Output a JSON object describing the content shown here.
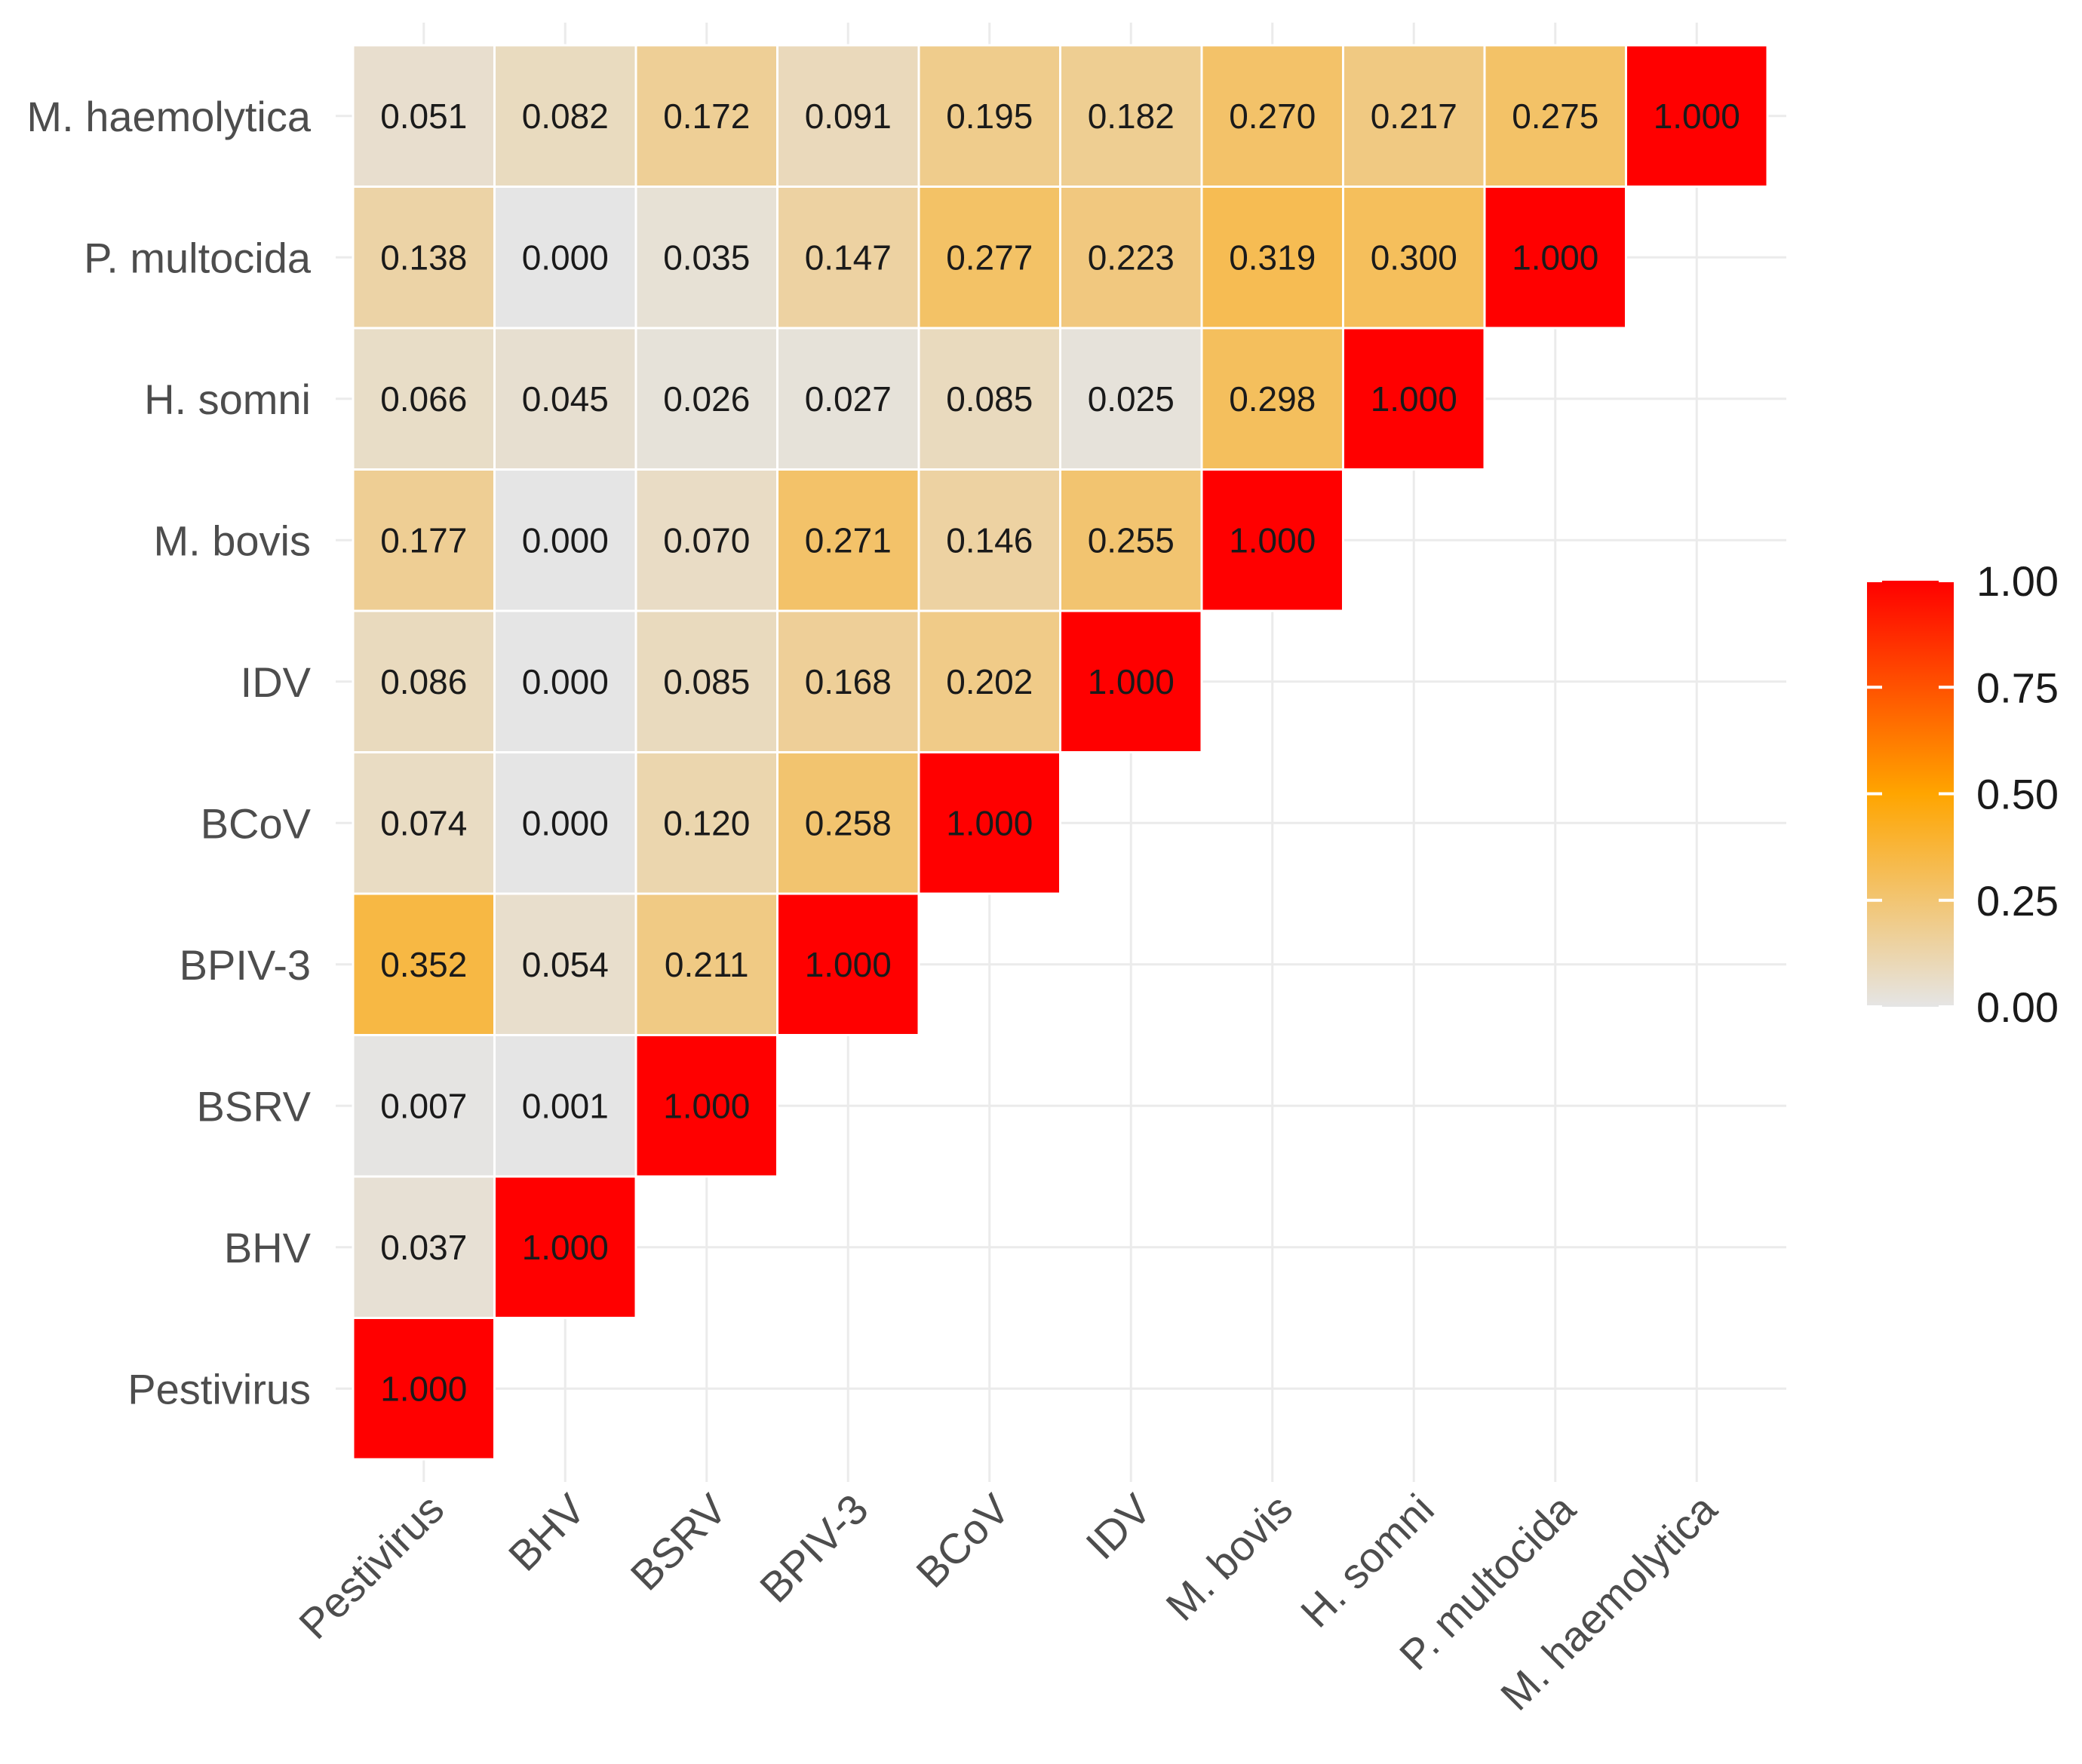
{
  "chart_data": {
    "type": "heatmap",
    "title": "",
    "xlabel": "",
    "ylabel": "",
    "categories": [
      "Pestivirus",
      "BHV",
      "BSRV",
      "BPIV-3",
      "BCoV",
      "IDV",
      "M. bovis",
      "H. somni",
      "P. multocida",
      "M. haemolytica"
    ],
    "matrix": [
      [
        "1.000",
        null,
        null,
        null,
        null,
        null,
        null,
        null,
        null,
        null
      ],
      [
        "0.037",
        "1.000",
        null,
        null,
        null,
        null,
        null,
        null,
        null,
        null
      ],
      [
        "0.007",
        "0.001",
        "1.000",
        null,
        null,
        null,
        null,
        null,
        null,
        null
      ],
      [
        "0.352",
        "0.054",
        "0.211",
        "1.000",
        null,
        null,
        null,
        null,
        null,
        null
      ],
      [
        "0.074",
        "0.000",
        "0.120",
        "0.258",
        "1.000",
        null,
        null,
        null,
        null,
        null
      ],
      [
        "0.086",
        "0.000",
        "0.085",
        "0.168",
        "0.202",
        "1.000",
        null,
        null,
        null,
        null
      ],
      [
        "0.177",
        "0.000",
        "0.070",
        "0.271",
        "0.146",
        "0.255",
        "1.000",
        null,
        null,
        null
      ],
      [
        "0.066",
        "0.045",
        "0.026",
        "0.027",
        "0.085",
        "0.025",
        "0.298",
        "1.000",
        null,
        null
      ],
      [
        "0.138",
        "0.000",
        "0.035",
        "0.147",
        "0.277",
        "0.223",
        "0.319",
        "0.300",
        "1.000",
        null
      ],
      [
        "0.051",
        "0.082",
        "0.172",
        "0.091",
        "0.195",
        "0.182",
        "0.270",
        "0.217",
        "0.275",
        "1.000"
      ]
    ],
    "legend": {
      "position": "right",
      "range": [
        0,
        1
      ],
      "ticks": [
        "0.00",
        "0.25",
        "0.50",
        "0.75",
        "1.00"
      ],
      "colors": [
        "#e5e5e5",
        "#ffa500",
        "#ff0000"
      ]
    },
    "grid": true
  }
}
